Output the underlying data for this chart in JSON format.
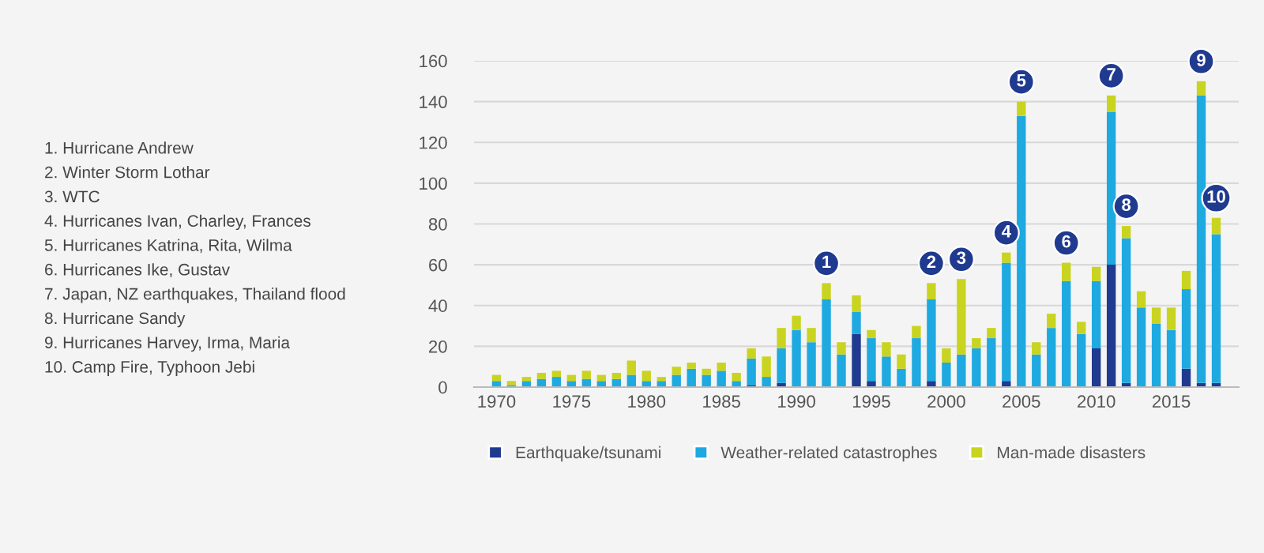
{
  "chart_data": {
    "type": "bar",
    "stacked": true,
    "x": [
      1970,
      1971,
      1972,
      1973,
      1974,
      1975,
      1976,
      1977,
      1978,
      1979,
      1980,
      1981,
      1982,
      1983,
      1984,
      1985,
      1986,
      1987,
      1988,
      1989,
      1990,
      1991,
      1992,
      1993,
      1994,
      1995,
      1996,
      1997,
      1998,
      1999,
      2000,
      2001,
      2002,
      2003,
      2004,
      2005,
      2006,
      2007,
      2008,
      2009,
      2010,
      2011,
      2012,
      2013,
      2014,
      2015,
      2016,
      2017,
      2018
    ],
    "xlim": [
      1968.5,
      2019.5
    ],
    "xticks": [
      1970,
      1975,
      1980,
      1985,
      1990,
      1995,
      2000,
      2005,
      2010,
      2015
    ],
    "ylim": [
      0,
      160
    ],
    "yticks": [
      0,
      20,
      40,
      60,
      80,
      100,
      120,
      140,
      160
    ],
    "grid": "y",
    "legend": "bottom",
    "series": [
      {
        "name": "Earthquake/tsunami",
        "color": "#1f3a8f",
        "values": [
          0,
          0,
          0,
          0,
          0,
          0,
          0,
          0,
          0,
          0,
          0,
          0,
          0,
          0,
          0,
          0,
          0,
          1,
          0,
          2,
          0,
          0,
          0,
          0,
          26,
          3,
          0,
          0,
          0,
          3,
          0,
          0,
          0,
          0,
          3,
          0,
          0,
          0,
          0,
          0,
          19,
          60,
          2,
          0,
          0,
          0,
          9,
          2,
          2
        ]
      },
      {
        "name": "Weather-related catastrophes",
        "color": "#1ea9e1",
        "values": [
          3,
          1,
          3,
          4,
          5,
          3,
          4,
          3,
          4,
          6,
          3,
          3,
          6,
          9,
          6,
          8,
          3,
          13,
          5,
          17,
          28,
          22,
          43,
          16,
          11,
          21,
          15,
          9,
          24,
          40,
          12,
          16,
          19,
          24,
          58,
          133,
          16,
          29,
          52,
          26,
          33,
          75,
          71,
          39,
          31,
          28,
          39,
          141,
          73
        ]
      },
      {
        "name": "Man-made disasters",
        "color": "#c9d420",
        "values": [
          3,
          2,
          2,
          3,
          3,
          3,
          4,
          3,
          3,
          7,
          5,
          2,
          4,
          3,
          3,
          4,
          4,
          5,
          10,
          10,
          7,
          7,
          8,
          6,
          8,
          4,
          7,
          7,
          6,
          8,
          7,
          37,
          5,
          5,
          5,
          7,
          6,
          7,
          9,
          6,
          7,
          8,
          6,
          8,
          8,
          11,
          9,
          7,
          8
        ]
      }
    ],
    "annotations": [
      {
        "text": "1",
        "x": 1992,
        "y": 51
      },
      {
        "text": "2",
        "x": 1999,
        "y": 51
      },
      {
        "text": "3",
        "x": 2001,
        "y": 53
      },
      {
        "text": "4",
        "x": 2004,
        "y": 66
      },
      {
        "text": "5",
        "x": 2005,
        "y": 140
      },
      {
        "text": "6",
        "x": 2008,
        "y": 61
      },
      {
        "text": "7",
        "x": 2011,
        "y": 143
      },
      {
        "text": "8",
        "x": 2012,
        "y": 79
      },
      {
        "text": "9",
        "x": 2017,
        "y": 150
      },
      {
        "text": "10",
        "x": 2018,
        "y": 83
      },
      "1. Hurricane Andrew",
      "2. Winter Storm Lothar",
      "3. WTC",
      "4. Hurricanes Ivan, Charley, Frances",
      "5. Hurricanes Katrina, Rita, Wilma",
      "6. Hurricanes Ike, Gustav",
      "7. Japan, NZ earthquakes, Thailand flood",
      "8. Hurricane Sandy",
      "9. Hurricanes Harvey, Irma, Maria",
      "10. Camp Fire, Typhoon Jebi"
    ]
  }
}
